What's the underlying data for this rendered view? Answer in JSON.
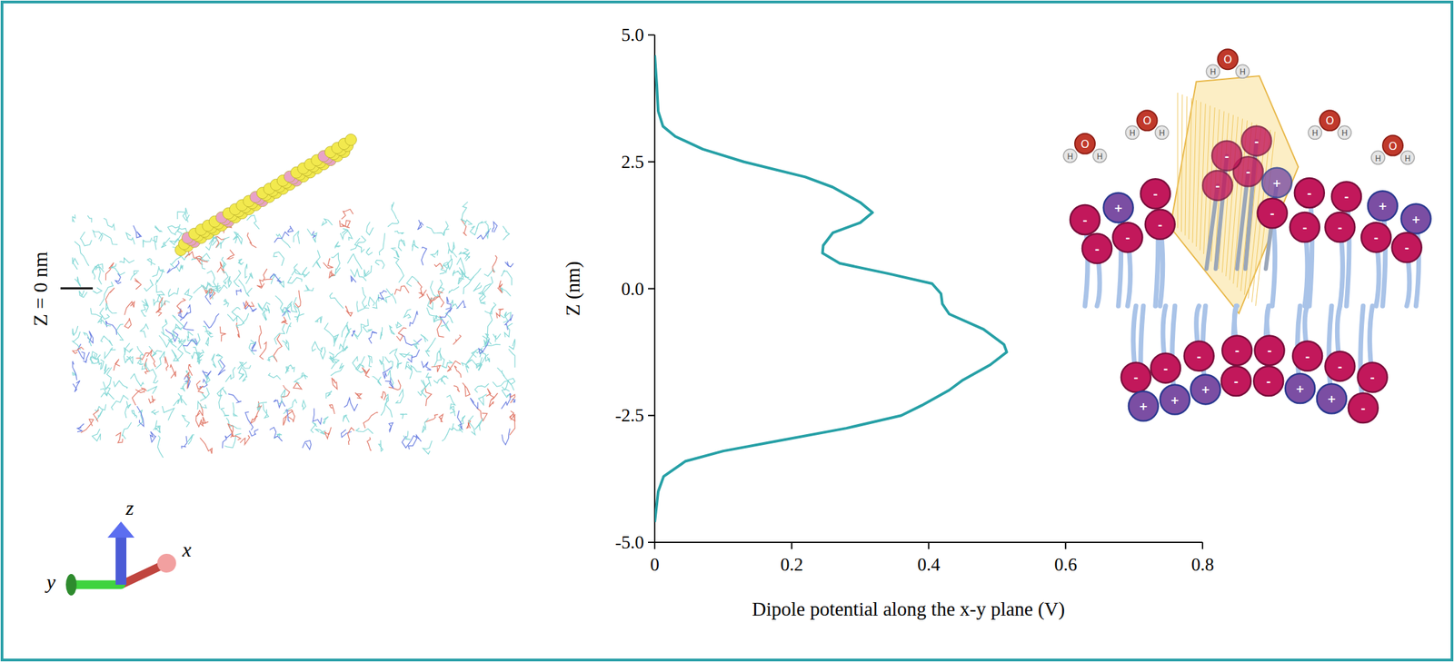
{
  "chart_data": {
    "type": "line",
    "x_label": "Dipole potential along the x-y plane (V)",
    "y_label": "Z (nm)",
    "x": [
      0,
      0.003,
      0.005,
      0.012,
      0.03,
      0.07,
      0.13,
      0.22,
      0.26,
      0.3,
      0.318,
      0.3,
      0.26,
      0.246,
      0.245,
      0.27,
      0.34,
      0.405,
      0.418,
      0.42,
      0.43,
      0.48,
      0.51,
      0.514,
      0.49,
      0.45,
      0.43,
      0.39,
      0.36,
      0.28,
      0.18,
      0.1,
      0.045,
      0.013,
      0.005,
      0
    ],
    "values": [
      4.6,
      4.0,
      3.5,
      3.2,
      3.0,
      2.75,
      2.5,
      2.2,
      2.0,
      1.7,
      1.5,
      1.3,
      1.1,
      0.85,
      0.7,
      0.5,
      0.3,
      0.1,
      -0.1,
      -0.3,
      -0.5,
      -0.8,
      -1.1,
      -1.25,
      -1.5,
      -1.8,
      -2.0,
      -2.3,
      -2.5,
      -2.75,
      -3.0,
      -3.2,
      -3.4,
      -3.7,
      -4.0,
      -4.6
    ],
    "color": "#26a0a6",
    "xlim": [
      0,
      0.8
    ],
    "xticks": [
      0,
      0.2,
      0.4,
      0.6,
      0.8
    ],
    "ylim": [
      -5,
      5
    ],
    "yticks": [
      {
        "value": 5,
        "label": "5.0"
      },
      {
        "value": 2.5,
        "label": "2.5"
      },
      {
        "value": 0,
        "label": "0.0"
      },
      {
        "value": -2.5,
        "label": "-2.5"
      },
      {
        "value": -5,
        "label": "-5.0"
      }
    ],
    "grid": false
  },
  "left_panel": {
    "z_marker": "Z = 0 nm",
    "axes": {
      "x": "x",
      "y": "y",
      "z": "z"
    }
  },
  "right_panel": {
    "atoms": {
      "oxygen": "O",
      "hydrogen": "H"
    },
    "charges": {
      "positive": "+",
      "negative": "-"
    }
  }
}
